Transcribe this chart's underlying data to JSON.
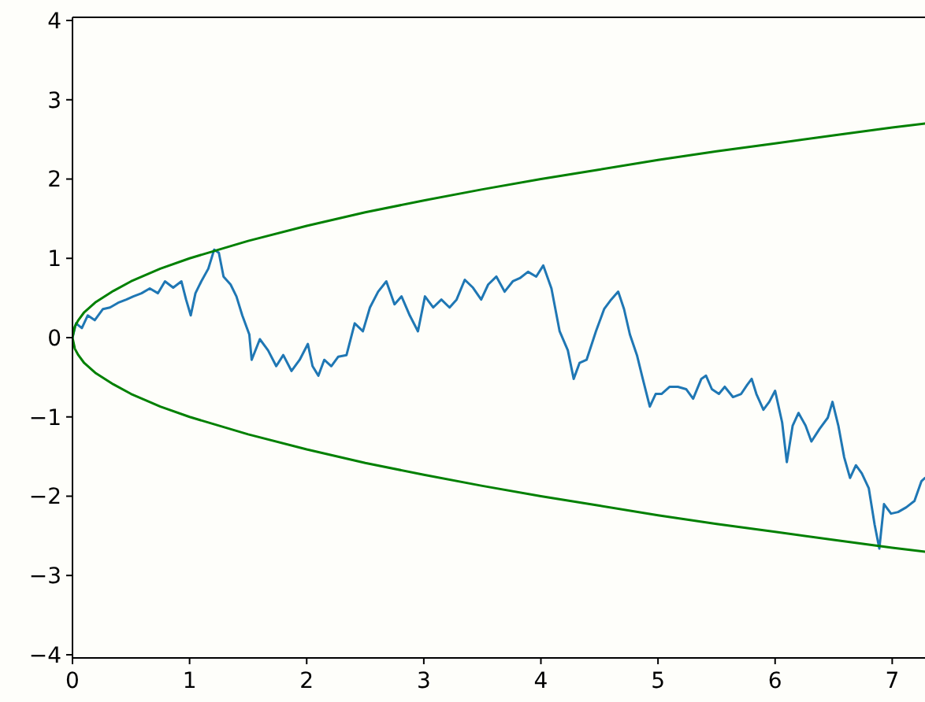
{
  "chart_data": {
    "type": "line",
    "xlim": [
      0,
      7.28
    ],
    "ylim": [
      -4.04,
      4.04
    ],
    "xticks": [
      0,
      1,
      2,
      3,
      4,
      5,
      6,
      7
    ],
    "yticks": [
      -4,
      -3,
      -2,
      -1,
      0,
      1,
      2,
      3,
      4
    ],
    "grid": false,
    "series": [
      {
        "color": "#1f77b4",
        "x": [
          0,
          0.03,
          0.08,
          0.13,
          0.19,
          0.26,
          0.32,
          0.39,
          0.46,
          0.52,
          0.59,
          0.66,
          0.73,
          0.79,
          0.86,
          0.93,
          0.97,
          1.01,
          1.05,
          1.1,
          1.16,
          1.21,
          1.25,
          1.29,
          1.35,
          1.4,
          1.45,
          1.51,
          1.53,
          1.6,
          1.67,
          1.74,
          1.8,
          1.87,
          1.94,
          2.01,
          2.05,
          2.1,
          2.15,
          2.21,
          2.27,
          2.34,
          2.41,
          2.48,
          2.54,
          2.61,
          2.68,
          2.75,
          2.81,
          2.88,
          2.95,
          3.01,
          3.08,
          3.15,
          3.22,
          3.28,
          3.35,
          3.42,
          3.49,
          3.55,
          3.62,
          3.69,
          3.76,
          3.82,
          3.89,
          3.96,
          4.02,
          4.09,
          4.16,
          4.23,
          4.28,
          4.33,
          4.39,
          4.47,
          4.54,
          4.6,
          4.66,
          4.71,
          4.76,
          4.82,
          4.87,
          4.93,
          4.98,
          5.03,
          5.1,
          5.17,
          5.24,
          5.3,
          5.37,
          5.41,
          5.46,
          5.52,
          5.57,
          5.64,
          5.71,
          5.76,
          5.8,
          5.84,
          5.9,
          5.95,
          6.0,
          6.06,
          6.1,
          6.15,
          6.2,
          6.26,
          6.31,
          6.38,
          6.45,
          6.49,
          6.54,
          6.59,
          6.64,
          6.69,
          6.74,
          6.8,
          6.85,
          6.89,
          6.93,
          6.99,
          7.05,
          7.12,
          7.19,
          7.25,
          7.28
        ],
        "values": [
          0,
          0.18,
          0.12,
          0.28,
          0.22,
          0.36,
          0.38,
          0.44,
          0.48,
          0.52,
          0.56,
          0.62,
          0.56,
          0.71,
          0.63,
          0.71,
          0.48,
          0.28,
          0.56,
          0.71,
          0.87,
          1.11,
          1.07,
          0.77,
          0.67,
          0.52,
          0.28,
          0.04,
          -0.28,
          -0.02,
          -0.16,
          -0.36,
          -0.22,
          -0.42,
          -0.28,
          -0.08,
          -0.36,
          -0.48,
          -0.28,
          -0.36,
          -0.24,
          -0.22,
          0.18,
          0.08,
          0.38,
          0.58,
          0.71,
          0.42,
          0.52,
          0.28,
          0.08,
          0.52,
          0.38,
          0.48,
          0.38,
          0.48,
          0.73,
          0.63,
          0.48,
          0.67,
          0.77,
          0.58,
          0.71,
          0.75,
          0.83,
          0.77,
          0.91,
          0.62,
          0.08,
          -0.16,
          -0.52,
          -0.32,
          -0.28,
          0.08,
          0.36,
          0.48,
          0.58,
          0.36,
          0.04,
          -0.22,
          -0.52,
          -0.87,
          -0.71,
          -0.71,
          -0.62,
          -0.62,
          -0.65,
          -0.77,
          -0.52,
          -0.48,
          -0.65,
          -0.71,
          -0.62,
          -0.75,
          -0.71,
          -0.6,
          -0.52,
          -0.71,
          -0.91,
          -0.81,
          -0.67,
          -1.07,
          -1.57,
          -1.11,
          -0.95,
          -1.11,
          -1.31,
          -1.15,
          -1.01,
          -0.81,
          -1.11,
          -1.51,
          -1.77,
          -1.61,
          -1.71,
          -1.9,
          -2.36,
          -2.66,
          -2.1,
          -2.22,
          -2.2,
          -2.14,
          -2.06,
          -1.81,
          -1.77
        ]
      },
      {
        "color": "#008000",
        "x": [
          7.28,
          7,
          6.5,
          6,
          5.5,
          5,
          4.5,
          4,
          3.5,
          3,
          2.5,
          2,
          1.5,
          1,
          0.75,
          0.5,
          0.35,
          0.2,
          0.1,
          0.05,
          0.02,
          0,
          0.02,
          0.05,
          0.1,
          0.2,
          0.35,
          0.5,
          0.75,
          1,
          1.5,
          2,
          2.5,
          3,
          3.5,
          4,
          4.5,
          5,
          5.5,
          6,
          6.5,
          7,
          7.28
        ],
        "values": [
          2.7,
          2.65,
          2.55,
          2.45,
          2.35,
          2.24,
          2.12,
          2,
          1.87,
          1.73,
          1.58,
          1.41,
          1.22,
          1,
          0.87,
          0.71,
          0.59,
          0.45,
          0.32,
          0.22,
          0.14,
          0,
          -0.14,
          -0.22,
          -0.32,
          -0.45,
          -0.59,
          -0.71,
          -0.87,
          -1,
          -1.22,
          -1.41,
          -1.58,
          -1.73,
          -1.87,
          -2,
          -2.12,
          -2.24,
          -2.35,
          -2.45,
          -2.55,
          -2.65,
          -2.7
        ]
      }
    ]
  }
}
